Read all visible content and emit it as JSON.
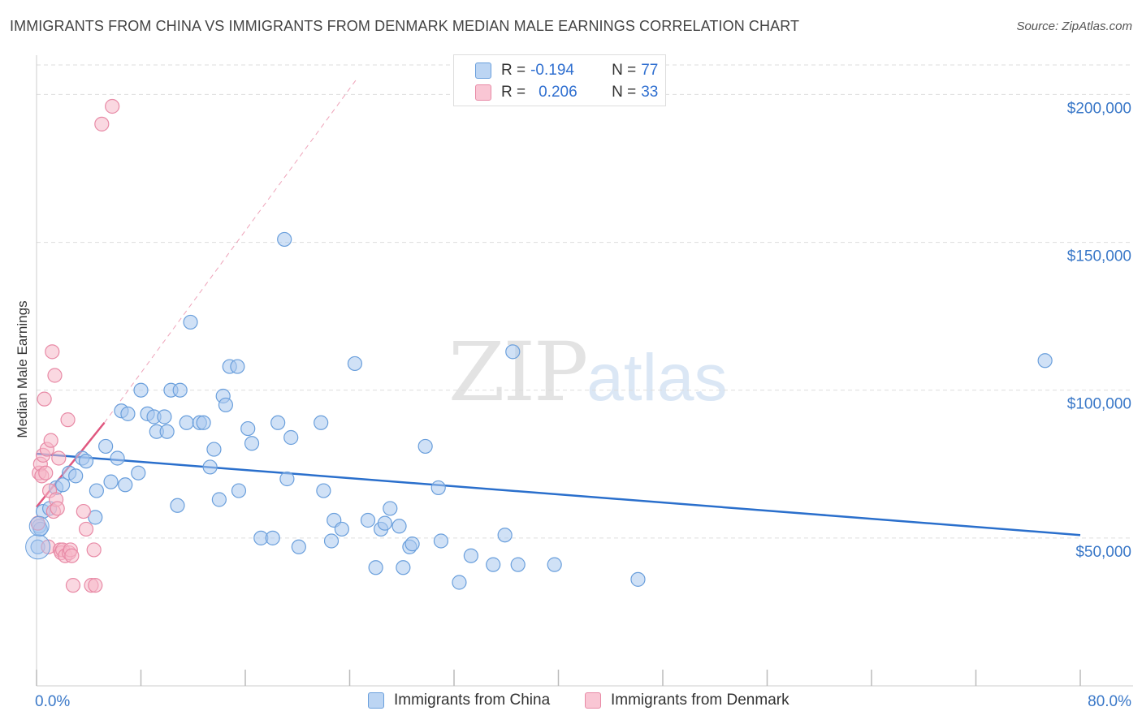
{
  "header": {
    "title": "IMMIGRANTS FROM CHINA VS IMMIGRANTS FROM DENMARK MEDIAN MALE EARNINGS CORRELATION CHART",
    "source": "Source: ZipAtlas.com"
  },
  "watermark": {
    "zip": "ZIP",
    "atlas": "atlas"
  },
  "legend": {
    "rows": [
      {
        "r_label": "R =",
        "r_value": "-0.194",
        "n_label": "N =",
        "n_value": "77"
      },
      {
        "r_label": "R =",
        "r_value": "0.206",
        "n_label": "N =",
        "n_value": "33"
      }
    ]
  },
  "colors": {
    "china_fill": "#a9c8ef",
    "china_stroke": "#6a9fdc",
    "china_line": "#2a6fcc",
    "denmark_fill": "#f6b8c9",
    "denmark_stroke": "#e88aa6",
    "denmark_line": "#e0577f"
  },
  "chart_data": {
    "type": "scatter",
    "title": "IMMIGRANTS FROM CHINA VS IMMIGRANTS FROM DENMARK MEDIAN MALE EARNINGS CORRELATION CHART",
    "xlabel": "",
    "ylabel": "Median Male Earnings",
    "xlim": [
      0,
      80
    ],
    "ylim": [
      0,
      210000
    ],
    "x_tick_labels": [
      "0.0%",
      "80.0%"
    ],
    "y_ticks": [
      50000,
      100000,
      150000,
      200000
    ],
    "y_tick_labels": [
      "$50,000",
      "$100,000",
      "$150,000",
      "$200,000"
    ],
    "grid": true,
    "series": [
      {
        "name": "Immigrants from China",
        "points": [
          [
            0.1,
            47000
          ],
          [
            0.2,
            54000
          ],
          [
            0.5,
            59000
          ],
          [
            1.0,
            60000
          ],
          [
            1.5,
            67000
          ],
          [
            2.0,
            68000
          ],
          [
            2.5,
            72000
          ],
          [
            3.0,
            71000
          ],
          [
            3.5,
            77000
          ],
          [
            3.8,
            76000
          ],
          [
            4.5,
            57000
          ],
          [
            4.6,
            66000
          ],
          [
            5.3,
            81000
          ],
          [
            5.7,
            69000
          ],
          [
            6.2,
            77000
          ],
          [
            6.5,
            93000
          ],
          [
            6.8,
            68000
          ],
          [
            7.0,
            92000
          ],
          [
            7.8,
            72000
          ],
          [
            8.0,
            100000
          ],
          [
            8.5,
            92000
          ],
          [
            9.0,
            91000
          ],
          [
            9.2,
            86000
          ],
          [
            9.8,
            91000
          ],
          [
            10.0,
            86000
          ],
          [
            10.3,
            100000
          ],
          [
            10.8,
            61000
          ],
          [
            11.0,
            100000
          ],
          [
            11.5,
            89000
          ],
          [
            11.8,
            123000
          ],
          [
            12.5,
            89000
          ],
          [
            12.8,
            89000
          ],
          [
            13.3,
            74000
          ],
          [
            13.6,
            80000
          ],
          [
            14.0,
            63000
          ],
          [
            14.3,
            98000
          ],
          [
            14.5,
            95000
          ],
          [
            14.8,
            108000
          ],
          [
            15.4,
            108000
          ],
          [
            15.5,
            66000
          ],
          [
            16.2,
            87000
          ],
          [
            16.5,
            82000
          ],
          [
            17.2,
            50000
          ],
          [
            18.1,
            50000
          ],
          [
            18.5,
            89000
          ],
          [
            19.0,
            151000
          ],
          [
            19.2,
            70000
          ],
          [
            19.5,
            84000
          ],
          [
            20.1,
            47000
          ],
          [
            21.8,
            89000
          ],
          [
            22.0,
            66000
          ],
          [
            22.6,
            49000
          ],
          [
            22.8,
            56000
          ],
          [
            23.4,
            53000
          ],
          [
            24.4,
            109000
          ],
          [
            25.4,
            56000
          ],
          [
            26.0,
            40000
          ],
          [
            26.4,
            53000
          ],
          [
            26.7,
            55000
          ],
          [
            27.1,
            60000
          ],
          [
            27.8,
            54000
          ],
          [
            28.1,
            40000
          ],
          [
            28.6,
            47000
          ],
          [
            28.8,
            48000
          ],
          [
            29.8,
            81000
          ],
          [
            30.8,
            67000
          ],
          [
            31.0,
            49000
          ],
          [
            32.4,
            35000
          ],
          [
            33.3,
            44000
          ],
          [
            35.0,
            41000
          ],
          [
            35.9,
            51000
          ],
          [
            36.5,
            113000
          ],
          [
            36.9,
            41000
          ],
          [
            39.7,
            41000
          ],
          [
            46.1,
            36000
          ],
          [
            77.3,
            110000
          ],
          [
            0.3,
            53000
          ]
        ]
      },
      {
        "name": "Immigrants from Denmark",
        "points": [
          [
            0.1,
            55000
          ],
          [
            0.2,
            72000
          ],
          [
            0.3,
            75000
          ],
          [
            0.4,
            71000
          ],
          [
            0.5,
            78000
          ],
          [
            0.6,
            97000
          ],
          [
            0.7,
            72000
          ],
          [
            0.8,
            80000
          ],
          [
            0.9,
            47000
          ],
          [
            1.0,
            66000
          ],
          [
            1.1,
            83000
          ],
          [
            1.2,
            113000
          ],
          [
            1.3,
            59000
          ],
          [
            1.4,
            105000
          ],
          [
            1.5,
            63000
          ],
          [
            1.6,
            60000
          ],
          [
            1.7,
            77000
          ],
          [
            1.8,
            46000
          ],
          [
            1.9,
            45000
          ],
          [
            2.0,
            46000
          ],
          [
            2.2,
            44000
          ],
          [
            2.4,
            90000
          ],
          [
            2.5,
            45000
          ],
          [
            2.6,
            46000
          ],
          [
            2.7,
            44000
          ],
          [
            2.8,
            34000
          ],
          [
            3.6,
            59000
          ],
          [
            3.8,
            53000
          ],
          [
            4.2,
            34000
          ],
          [
            4.4,
            46000
          ],
          [
            4.5,
            34000
          ],
          [
            5.0,
            190000
          ],
          [
            5.8,
            196000
          ]
        ]
      }
    ],
    "trendlines": [
      {
        "series": "Immigrants from China",
        "x": [
          0,
          80
        ],
        "y": [
          78500,
          51000
        ],
        "style": "solid"
      },
      {
        "series": "Immigrants from Denmark",
        "x": [
          0,
          5.2
        ],
        "y": [
          60500,
          89000
        ],
        "style": "solid"
      },
      {
        "series": "Immigrants from Denmark",
        "x": [
          5.2,
          24.5
        ],
        "y": [
          89000,
          205000
        ],
        "style": "dashed"
      }
    ]
  },
  "bottom_legend": [
    {
      "label": "Immigrants from China"
    },
    {
      "label": "Immigrants from Denmark"
    }
  ]
}
